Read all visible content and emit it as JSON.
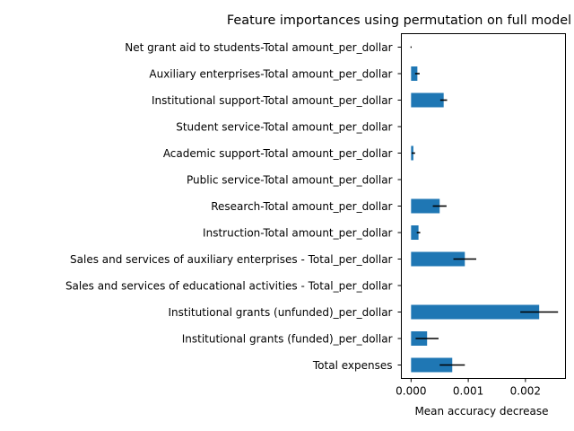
{
  "chart_data": {
    "type": "bar",
    "orientation": "horizontal",
    "title": "Feature importances using permutation on full model",
    "xlabel": "Mean accuracy decrease",
    "ylabel": "",
    "xlim": [
      -0.00017,
      0.0027
    ],
    "grid": false,
    "legend": "none",
    "bar_color": "#1f77b4",
    "error_color": "#000000",
    "xticks": [
      {
        "value": 0.0,
        "label": "0.000"
      },
      {
        "value": 0.001,
        "label": "0.001"
      },
      {
        "value": 0.002,
        "label": "0.002"
      }
    ],
    "categories": [
      "Net grant aid to students-Total amount_per_dollar",
      "Auxiliary enterprises-Total amount_per_dollar",
      "Institutional support-Total amount_per_dollar",
      "Student service-Total amount_per_dollar",
      "Academic support-Total amount_per_dollar",
      "Public service-Total amount_per_dollar",
      "Research-Total amount_per_dollar",
      "Instruction-Total amount_per_dollar",
      "Sales and services of auxiliary enterprises - Total_per_dollar",
      "Sales and services of educational activities - Total_per_dollar",
      "Institutional grants (unfunded)_per_dollar",
      "Institutional grants (funded)_per_dollar",
      "Total expenses"
    ],
    "values": [
      0.0,
      0.00011,
      0.00057,
      0.0,
      4e-05,
      0.0,
      0.0005,
      0.00013,
      0.00094,
      0.0,
      0.00224,
      0.00028,
      0.00072
    ],
    "errors": [
      1e-05,
      4e-05,
      6e-05,
      0.0,
      3e-05,
      0.0,
      0.00012,
      3e-05,
      0.0002,
      0.0,
      0.00033,
      0.0002,
      0.00022
    ]
  }
}
